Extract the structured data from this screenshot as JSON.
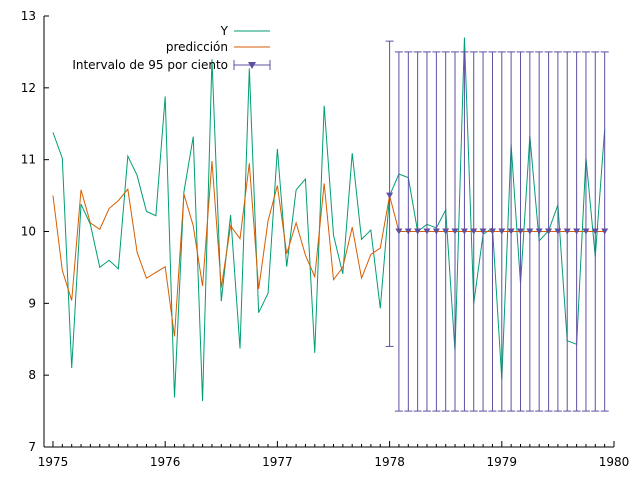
{
  "chart_data": {
    "type": "line",
    "grid": false,
    "legend_placement": "top-left",
    "xlim": [
      1974.92,
      1980
    ],
    "ylim": [
      7,
      13
    ],
    "x_ticks": [
      1975,
      1976,
      1977,
      1978,
      1979,
      1980
    ],
    "y_ticks": [
      7,
      8,
      9,
      10,
      11,
      12,
      13
    ],
    "x_tick_labels": [
      "1975",
      "1976",
      "1977",
      "1978",
      "1979",
      "1980"
    ],
    "y_tick_labels": [
      "7",
      "8",
      "9",
      "10",
      "11",
      "12",
      "13"
    ],
    "colors": {
      "y": "#009e73",
      "pred": "#d55e00",
      "interval": "#5e4fa2",
      "axis": "#000000"
    },
    "series": [
      {
        "name": "Y",
        "x": [
          1975.0,
          1975.083,
          1975.167,
          1975.25,
          1975.333,
          1975.417,
          1975.5,
          1975.583,
          1975.667,
          1975.75,
          1975.833,
          1975.917,
          1976.0,
          1976.083,
          1976.167,
          1976.25,
          1976.333,
          1976.417,
          1976.5,
          1976.583,
          1976.667,
          1976.75,
          1976.833,
          1976.917,
          1977.0,
          1977.083,
          1977.167,
          1977.25,
          1977.333,
          1977.417,
          1977.5,
          1977.583,
          1977.667,
          1977.75,
          1977.833,
          1977.917,
          1978.0,
          1978.083,
          1978.167,
          1978.25,
          1978.333,
          1978.417,
          1978.5,
          1978.583,
          1978.667,
          1978.75,
          1978.833,
          1978.917,
          1979.0,
          1979.083,
          1979.167,
          1979.25,
          1979.333,
          1979.417,
          1979.5,
          1979.583,
          1979.667,
          1979.75,
          1979.833,
          1979.917
        ],
        "y": [
          11.38,
          11.02,
          8.1,
          10.38,
          10.1,
          9.5,
          9.6,
          9.48,
          11.05,
          10.78,
          10.28,
          10.22,
          11.88,
          7.69,
          10.55,
          11.32,
          7.64,
          12.4,
          9.03,
          10.23,
          8.37,
          12.27,
          8.87,
          9.14,
          11.15,
          9.51,
          10.58,
          10.73,
          8.31,
          11.75,
          9.95,
          9.41,
          11.09,
          9.89,
          10.02,
          8.93,
          10.5,
          10.8,
          10.75,
          10.0,
          10.1,
          10.05,
          10.3,
          8.33,
          12.7,
          9.0,
          9.96,
          10.05,
          7.94,
          11.21,
          9.27,
          11.33,
          9.87,
          10.01,
          10.37,
          8.48,
          8.43,
          11.03,
          9.65,
          11.43
        ]
      },
      {
        "name": "predicción",
        "x": [
          1975.0,
          1975.083,
          1975.167,
          1975.25,
          1975.333,
          1975.417,
          1975.5,
          1975.583,
          1975.667,
          1975.75,
          1975.833,
          1975.917,
          1976.0,
          1976.083,
          1976.167,
          1976.25,
          1976.333,
          1976.417,
          1976.5,
          1976.583,
          1976.667,
          1976.75,
          1976.833,
          1976.917,
          1977.0,
          1977.083,
          1977.167,
          1977.25,
          1977.333,
          1977.417,
          1977.5,
          1977.583,
          1977.667,
          1977.75,
          1977.833,
          1977.917,
          1978.0,
          1978.083,
          1978.167,
          1978.25,
          1978.333,
          1978.417,
          1978.5,
          1978.583,
          1978.667,
          1978.75,
          1978.833,
          1978.917,
          1979.0,
          1979.083,
          1979.167,
          1979.25,
          1979.333,
          1979.417,
          1979.5,
          1979.583,
          1979.667,
          1979.75,
          1979.833,
          1979.917
        ],
        "y": [
          10.5,
          9.46,
          9.04,
          10.58,
          10.12,
          10.03,
          10.32,
          10.43,
          10.59,
          9.71,
          9.35,
          9.43,
          9.51,
          8.54,
          10.52,
          10.08,
          9.24,
          10.98,
          9.22,
          10.08,
          9.9,
          10.95,
          9.2,
          10.15,
          10.64,
          9.69,
          10.12,
          9.67,
          9.37,
          10.67,
          9.33,
          9.5,
          10.06,
          9.35,
          9.68,
          9.77,
          10.5,
          10.0,
          10.0,
          10.0,
          10.0,
          10.0,
          10.0,
          10.0,
          10.0,
          10.0,
          10.0,
          10.0,
          10.0,
          10.0,
          10.0,
          10.0,
          10.0,
          10.0,
          10.0,
          10.0,
          10.0,
          10.0,
          10.0,
          10.0
        ]
      },
      {
        "name": "Intervalo de 95 por ciento",
        "x": [
          1978.0,
          1978.083,
          1978.167,
          1978.25,
          1978.333,
          1978.417,
          1978.5,
          1978.583,
          1978.667,
          1978.75,
          1978.833,
          1978.917,
          1979.0,
          1979.083,
          1979.167,
          1979.25,
          1979.333,
          1979.417,
          1979.5,
          1979.583,
          1979.667,
          1979.75,
          1979.833,
          1979.917
        ],
        "center": [
          10.5,
          10.0,
          10.0,
          10.0,
          10.0,
          10.0,
          10.0,
          10.0,
          10.0,
          10.0,
          10.0,
          10.0,
          10.0,
          10.0,
          10.0,
          10.0,
          10.0,
          10.0,
          10.0,
          10.0,
          10.0,
          10.0,
          10.0,
          10.0
        ],
        "lower": [
          8.4,
          7.5,
          7.5,
          7.5,
          7.5,
          7.5,
          7.5,
          7.5,
          7.5,
          7.5,
          7.5,
          7.5,
          7.5,
          7.5,
          7.5,
          7.5,
          7.5,
          7.5,
          7.5,
          7.5,
          7.5,
          7.5,
          7.5,
          7.5
        ],
        "upper": [
          12.65,
          12.5,
          12.5,
          12.5,
          12.5,
          12.5,
          12.5,
          12.5,
          12.5,
          12.5,
          12.5,
          12.5,
          12.5,
          12.5,
          12.5,
          12.5,
          12.5,
          12.5,
          12.5,
          12.5,
          12.5,
          12.5,
          12.5,
          12.5
        ]
      }
    ]
  }
}
